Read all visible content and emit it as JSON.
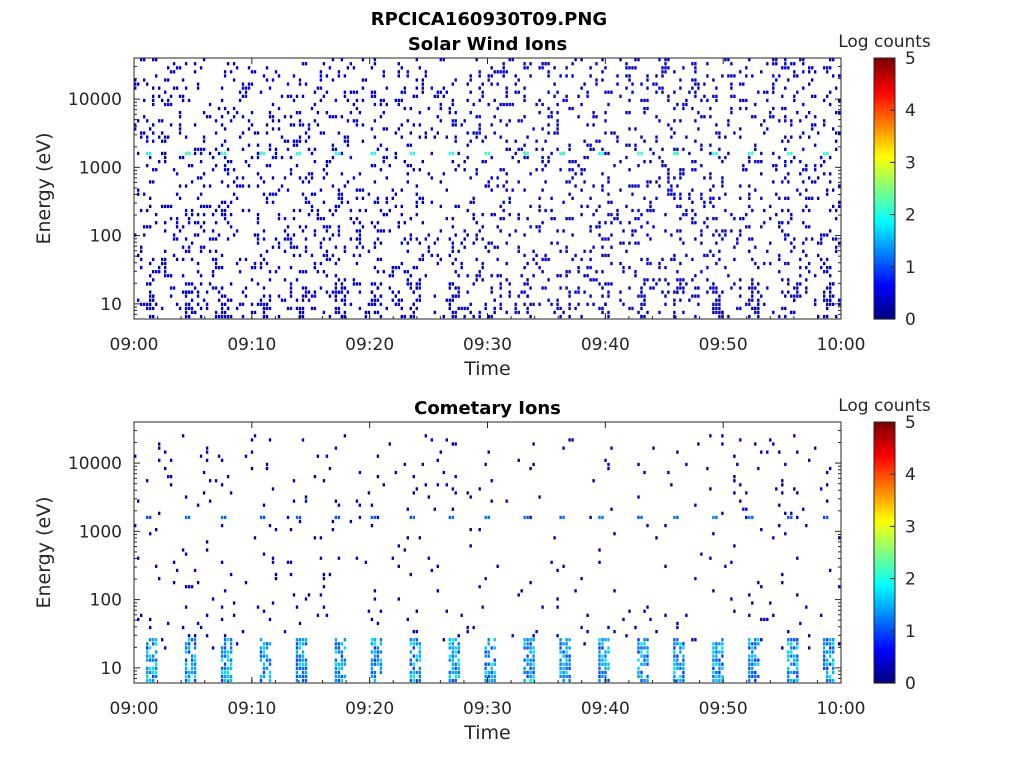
{
  "figure_title": "RPCICA160930T09.PNG",
  "colorbar_label": "Log counts",
  "colorbar_ticks": [
    "0",
    "1",
    "2",
    "3",
    "4",
    "5"
  ],
  "chart_data": [
    {
      "type": "heatmap",
      "title": "Solar Wind Ions",
      "xlabel": "Time",
      "ylabel": "Energy (eV)",
      "x_range": [
        "09:00",
        "10:00"
      ],
      "x_ticks": [
        "09:00",
        "09:10",
        "09:20",
        "09:30",
        "09:40",
        "09:50",
        "10:00"
      ],
      "y_scale": "log",
      "y_range": [
        6,
        40000
      ],
      "y_ticks": [
        "10",
        "100",
        "1000",
        "10000"
      ],
      "c_range": [
        0,
        5
      ],
      "colormap": "jet",
      "features": [
        {
          "description": "periodic energy sweep bands",
          "energy_eV": 1600,
          "log_counts": 2.0,
          "period_min": 3.2
        },
        {
          "description": "scattered background counts",
          "energy_min_eV": 6,
          "energy_max_eV": 40000,
          "log_counts": 0.2
        },
        {
          "description": "low energy periodic counts",
          "energy_min_eV": 6,
          "energy_max_eV": 20,
          "log_counts": 0.3
        }
      ]
    },
    {
      "type": "heatmap",
      "title": "Cometary Ions",
      "xlabel": "Time",
      "ylabel": "Energy (eV)",
      "x_range": [
        "09:00",
        "10:00"
      ],
      "x_ticks": [
        "09:00",
        "09:10",
        "09:20",
        "09:30",
        "09:40",
        "09:50",
        "10:00"
      ],
      "y_scale": "log",
      "y_range": [
        6,
        40000
      ],
      "y_ticks": [
        "10",
        "100",
        "1000",
        "10000"
      ],
      "c_range": [
        0,
        5
      ],
      "colormap": "jet",
      "features": [
        {
          "description": "periodic energy sweep bands",
          "energy_eV": 1600,
          "log_counts": 1.0,
          "period_min": 3.2
        },
        {
          "description": "low energy cometary ion bursts",
          "energy_min_eV": 6,
          "energy_max_eV": 25,
          "log_counts": 1.5,
          "period_min": 3.2
        },
        {
          "description": "sparse background counts",
          "energy_min_eV": 20,
          "energy_max_eV": 30000,
          "log_counts": 0.1
        }
      ]
    }
  ]
}
